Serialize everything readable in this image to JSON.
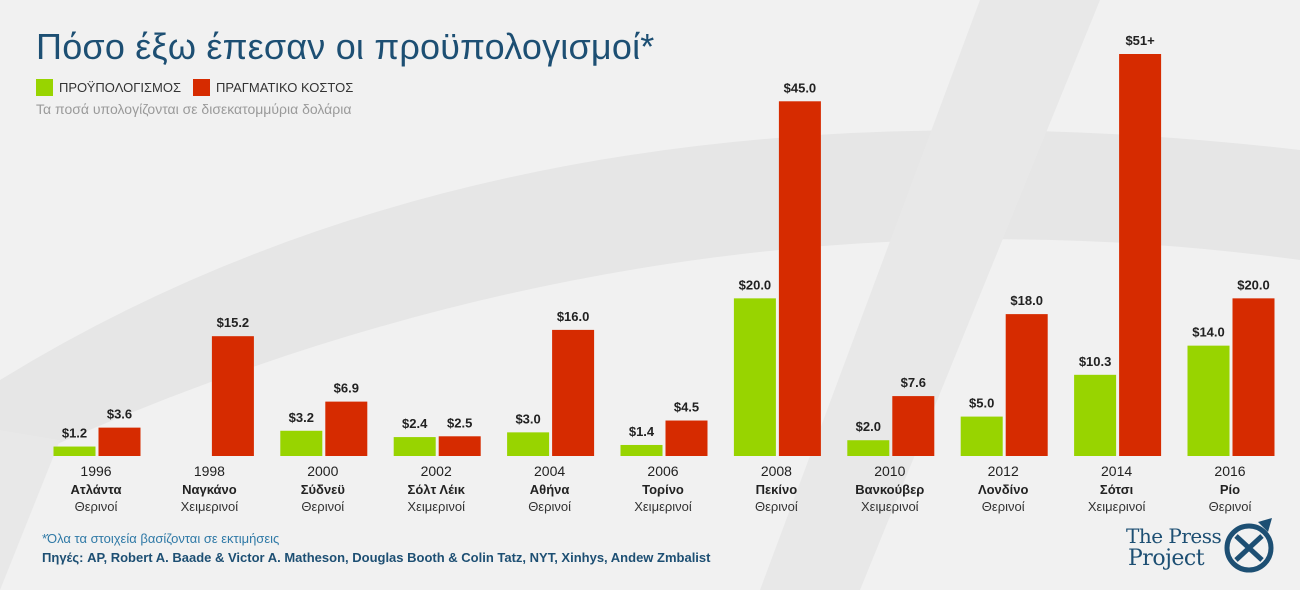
{
  "title": "Πόσο έξω έπεσαν οι προϋπολογισμοί*",
  "legend": [
    {
      "label": "ΠΡΟΫΠΟΛΟΓΙΣΜΟΣ",
      "color": "#98d400"
    },
    {
      "label": "ΠΡΑΓΜΑΤΙΚΟ ΚΟΣΤΟΣ",
      "color": "#d62b00"
    }
  ],
  "subtitle": "Τα ποσά υπολογίζονται σε δισεκατομμύρια δολάρια",
  "footnote": "*Όλα τα στοιχεία βασίζονται σε εκτιμήσεις",
  "sources": "Πηγές: AP, Robert A. Baade & Victor A. Matheson, Douglas Booth & Colin Tatz, NYT, Xinhys, Andew Zmbalist",
  "logo": {
    "line1": "The Press",
    "line2": "Project"
  },
  "chart_data": {
    "type": "bar",
    "categories": [
      {
        "year": "1996",
        "city": "Ατλάντα",
        "season": "Θερινοί"
      },
      {
        "year": "1998",
        "city": "Ναγκάνο",
        "season": "Χειμερινοί"
      },
      {
        "year": "2000",
        "city": "Σύδνεϋ",
        "season": "Θερινοί"
      },
      {
        "year": "2002",
        "city": "Σόλτ Λέικ",
        "season": "Χειμερινοί"
      },
      {
        "year": "2004",
        "city": "Αθήνα",
        "season": "Θερινοί"
      },
      {
        "year": "2006",
        "city": "Τορίνο",
        "season": "Χειμερινοί"
      },
      {
        "year": "2008",
        "city": "Πεκίνο",
        "season": "Θερινοί"
      },
      {
        "year": "2010",
        "city": "Βανκούβερ",
        "season": "Χειμερινοί"
      },
      {
        "year": "2012",
        "city": "Λονδίνο",
        "season": "Θερινοί"
      },
      {
        "year": "2014",
        "city": "Σότσι",
        "season": "Χειμερινοί"
      },
      {
        "year": "2016",
        "city": "Ρίο",
        "season": "Θερινοί"
      }
    ],
    "series": [
      {
        "name": "ΠΡΟΫΠΟΛΟΓΙΣΜΟΣ",
        "color": "#98d400",
        "values": [
          1.2,
          null,
          3.2,
          2.4,
          3.0,
          1.4,
          20.0,
          2.0,
          5.0,
          10.3,
          14.0
        ],
        "labels": [
          "$1.2",
          "",
          "$3.2",
          "$2.4",
          "$3.0",
          "$1.4",
          "$20.0",
          "$2.0",
          "$5.0",
          "$10.3",
          "$14.0"
        ]
      },
      {
        "name": "ΠΡΑΓΜΑΤΙΚΟ ΚΟΣΤΟΣ",
        "color": "#d62b00",
        "values": [
          3.6,
          15.2,
          6.9,
          2.5,
          16.0,
          4.5,
          45.0,
          7.6,
          18.0,
          51.0,
          20.0
        ],
        "labels": [
          "$3.6",
          "$15.2",
          "$6.9",
          "$2.5",
          "$16.0",
          "$4.5",
          "$45.0",
          "$7.6",
          "$18.0",
          "$51+",
          "$20.0"
        ]
      }
    ],
    "ylim": [
      0,
      51
    ],
    "grid": false,
    "legend_position": "top-left"
  }
}
